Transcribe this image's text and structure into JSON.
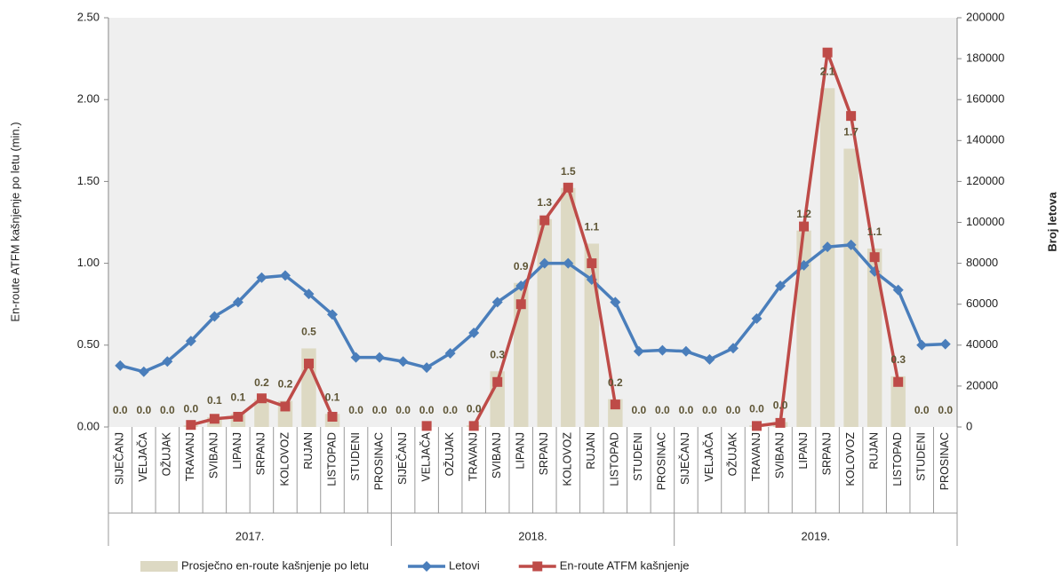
{
  "chart_data": {
    "type": "combo",
    "ylabel": "En-route ATFM kašnjenje po letu (min.)",
    "y2label": "Broj letova",
    "categories": [
      "SIJEČANJ",
      "VELJAČA",
      "OŽUJAK",
      "TRAVANJ",
      "SVIBANJ",
      "LIPANJ",
      "SRPANJ",
      "KOLOVOZ",
      "RUJAN",
      "LISTOPAD",
      "STUDENI",
      "PROSINAC",
      "SIJEČANJ",
      "VELJAČA",
      "OŽUJAK",
      "TRAVANJ",
      "SVIBANJ",
      "LIPANJ",
      "SRPANJ",
      "KOLOVOZ",
      "RUJAN",
      "LISTOPAD",
      "STUDENI",
      "PROSINAC",
      "SIJEČANJ",
      "VELJAČA",
      "OŽUJAK",
      "TRAVANJ",
      "SVIBANJ",
      "LIPANJ",
      "SRPANJ",
      "KOLOVOZ",
      "RUJAN",
      "LISTOPAD",
      "STUDENI",
      "PROSINAC"
    ],
    "groups": [
      "2017.",
      "2018.",
      "2019."
    ],
    "ylim": [
      0,
      2.5
    ],
    "yticks": [
      {
        "value": 0,
        "label": "0.00"
      },
      {
        "value": 0.5,
        "label": "0.50"
      },
      {
        "value": 1,
        "label": "1.00"
      },
      {
        "value": 1.5,
        "label": "1.50"
      },
      {
        "value": 2,
        "label": "2.00"
      },
      {
        "value": 2.5,
        "label": "2.50"
      }
    ],
    "y2lim": [
      0,
      200000
    ],
    "y2ticks": [
      0,
      20000,
      40000,
      60000,
      80000,
      100000,
      120000,
      140000,
      160000,
      180000,
      200000
    ],
    "series": [
      {
        "name": "Prosječno en-route kašnjenje po letu",
        "type": "bar",
        "axis": "y",
        "color": "#ddd9c3",
        "values": [
          0,
          0,
          0,
          0.01,
          0.06,
          0.08,
          0.17,
          0.16,
          0.48,
          0.08,
          0,
          0,
          0,
          0,
          0,
          0.01,
          0.34,
          0.88,
          1.27,
          1.46,
          1.12,
          0.17,
          0,
          0,
          0,
          0,
          0,
          0.01,
          0.03,
          1.2,
          2.07,
          1.7,
          1.09,
          0.31,
          0,
          0
        ],
        "value_labels": [
          "0.0",
          "0.0",
          "0.0",
          "0.0",
          "0.1",
          "0.1",
          "0.2",
          "0.2",
          "0.5",
          "0.1",
          "0.0",
          "0.0",
          "0.0",
          "0.0",
          "0.0",
          "0.0",
          "0.3",
          "0.9",
          "1.3",
          "1.5",
          "1.1",
          "0.2",
          "0.0",
          "0.0",
          "0.0",
          "0.0",
          "0.0",
          "0.0",
          "0.0",
          "1.2",
          "2.1",
          "1.7",
          "1.1",
          "0.3",
          "0.0",
          "0.0"
        ]
      },
      {
        "name": "Letovi",
        "type": "line",
        "axis": "y2",
        "color": "#4a7ebb",
        "marker": "diamond",
        "values": [
          30000,
          27000,
          32000,
          42000,
          54000,
          61000,
          73000,
          74000,
          65000,
          55000,
          34000,
          34000,
          32000,
          29000,
          36000,
          46000,
          61000,
          69000,
          80000,
          80000,
          72000,
          61000,
          37000,
          37500,
          37000,
          33000,
          38500,
          53000,
          69000,
          79000,
          88000,
          89000,
          76000,
          67000,
          40000,
          40500
        ]
      },
      {
        "name": "En-route ATFM kašnjenje",
        "type": "line",
        "axis": "y2",
        "color": "#be4b48",
        "marker": "square",
        "values": [
          null,
          null,
          null,
          1000,
          4000,
          5000,
          14000,
          10000,
          31000,
          5000,
          null,
          null,
          null,
          500,
          null,
          500,
          22000,
          60000,
          101000,
          117000,
          80000,
          11000,
          null,
          null,
          null,
          null,
          null,
          500,
          2000,
          98000,
          183000,
          152000,
          83000,
          22000,
          null,
          null
        ]
      }
    ]
  }
}
